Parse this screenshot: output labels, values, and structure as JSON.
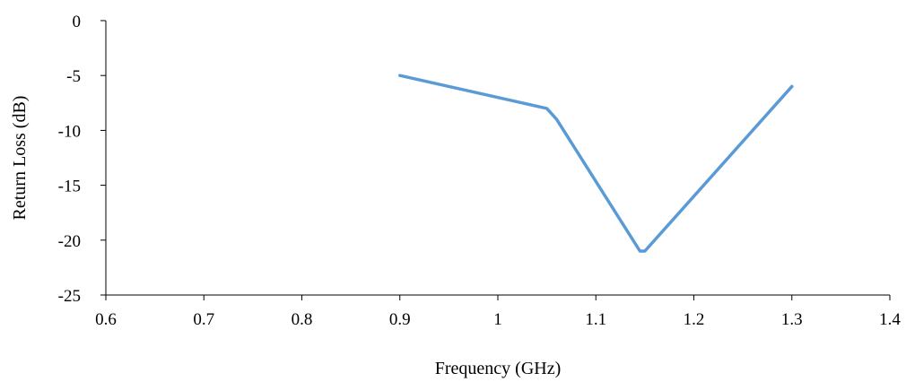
{
  "chart_data": {
    "type": "line",
    "title": "",
    "xlabel": "Frequency (GHz)",
    "ylabel": "Return Loss (dB)",
    "xlim": [
      0.6,
      1.4
    ],
    "ylim": [
      -25,
      0
    ],
    "xticks": [
      0.6,
      0.7,
      0.8,
      0.9,
      1,
      1.1,
      1.2,
      1.3,
      1.4
    ],
    "xtick_labels": [
      "0.6",
      "0.7",
      "0.8",
      "0.9",
      "1",
      "1.1",
      "1.2",
      "1.3",
      "1.4"
    ],
    "yticks": [
      0,
      -5,
      -10,
      -15,
      -20,
      -25
    ],
    "ytick_labels": [
      "0",
      "-5",
      "-10",
      "-15",
      "-20",
      "-25"
    ],
    "grid": false,
    "legend": "none",
    "series": [
      {
        "color": "#5b9bd5",
        "x": [
          0.9,
          1.05,
          1.06,
          1.145,
          1.15,
          1.3
        ],
        "y": [
          -5,
          -8,
          -9,
          -21,
          -21,
          -6
        ]
      }
    ]
  }
}
